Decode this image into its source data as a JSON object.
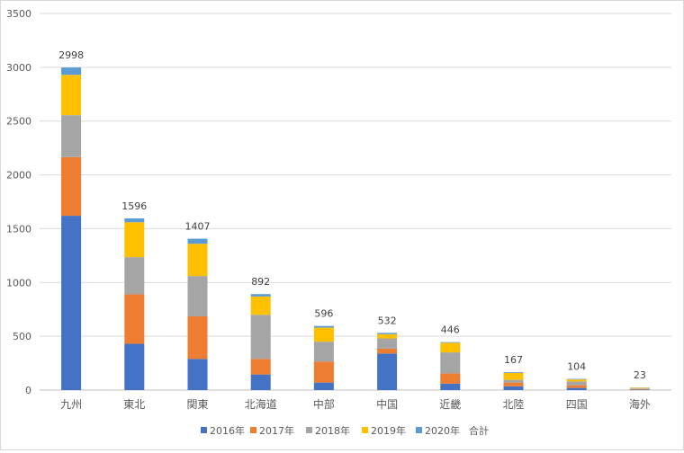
{
  "chart_data": {
    "type": "bar",
    "stacked": true,
    "categories": [
      "九州",
      "東北",
      "関東",
      "北海道",
      "中部",
      "中国",
      "近畿",
      "北陸",
      "四国",
      "海外"
    ],
    "series": [
      {
        "name": "2016年",
        "color": "#4472C4",
        "values": [
          1620,
          430,
          290,
          145,
          70,
          340,
          60,
          35,
          20,
          5
        ]
      },
      {
        "name": "2017年",
        "color": "#ED7D31",
        "values": [
          545,
          460,
          395,
          145,
          195,
          45,
          95,
          35,
          25,
          5
        ]
      },
      {
        "name": "2018年",
        "color": "#A5A5A5",
        "values": [
          390,
          345,
          375,
          410,
          185,
          95,
          195,
          25,
          35,
          5
        ]
      },
      {
        "name": "2019年",
        "color": "#FFC000",
        "values": [
          375,
          325,
          300,
          170,
          130,
          40,
          90,
          65,
          19,
          6
        ]
      },
      {
        "name": "2020年",
        "color": "#5B9BD5",
        "values": [
          68,
          36,
          47,
          22,
          16,
          12,
          6,
          7,
          5,
          2
        ]
      }
    ],
    "totals_series_name": "合計",
    "totals": [
      2998,
      1596,
      1407,
      892,
      596,
      532,
      446,
      167,
      104,
      23
    ],
    "ylim": [
      0,
      3500
    ],
    "yticks": [
      0,
      500,
      1000,
      1500,
      2000,
      2500,
      3000,
      3500
    ],
    "title": "",
    "xlabel": "",
    "ylabel": "",
    "grid": true,
    "legend_position": "bottom"
  }
}
